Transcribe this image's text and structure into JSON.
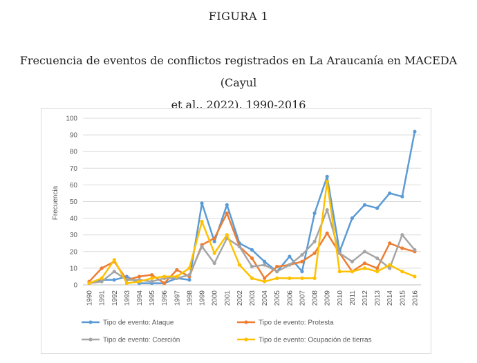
{
  "figure_label": "FIGURA 1",
  "caption_line1": "Frecuencia de eventos de conflictos registrados en La Araucanía en MACEDA (Cayul",
  "caption_line2": "et al., 2022), 1990-2016",
  "chart_data": {
    "type": "line",
    "title": "",
    "xlabel": "",
    "ylabel": "Frecuencia",
    "ylim": [
      0,
      100
    ],
    "y_ticks": [
      0,
      10,
      20,
      30,
      40,
      50,
      60,
      70,
      80,
      90,
      100
    ],
    "grid": true,
    "legend_position": "bottom",
    "categories": [
      "1990",
      "1991",
      "1992",
      "1993",
      "1994",
      "1995",
      "1996",
      "1997",
      "1998",
      "1999",
      "2000",
      "2001",
      "2002",
      "2003",
      "2004",
      "2005",
      "2006",
      "2007",
      "2008",
      "2009",
      "2010",
      "2011",
      "2012",
      "2013",
      "2014",
      "2015",
      "2016"
    ],
    "series": [
      {
        "name": "Tipo de evento: Ataque",
        "color": "#5b9bd5",
        "values": [
          1,
          3,
          3,
          5,
          1,
          1,
          1,
          4,
          3,
          49,
          26,
          48,
          25,
          21,
          14,
          8,
          17,
          8,
          43,
          65,
          20,
          40,
          48,
          46,
          55,
          53,
          92
        ]
      },
      {
        "name": "Tipo de evento: Protesta",
        "color": "#ed7d31",
        "values": [
          2,
          10,
          14,
          3,
          5,
          6,
          1,
          9,
          5,
          24,
          28,
          43,
          23,
          16,
          4,
          11,
          12,
          14,
          19,
          31,
          19,
          8,
          13,
          10,
          25,
          22,
          20
        ]
      },
      {
        "name": "Tipo de evento: Coerción",
        "color": "#a5a5a5",
        "values": [
          1,
          2,
          8,
          3,
          3,
          2,
          4,
          4,
          6,
          23,
          13,
          28,
          23,
          11,
          12,
          8,
          12,
          18,
          26,
          45,
          19,
          14,
          20,
          16,
          10,
          30,
          21
        ]
      },
      {
        "name": "Tipo de evento: Ocupación de tierras",
        "color": "#ffc000",
        "values": [
          1,
          4,
          15,
          1,
          2,
          4,
          5,
          5,
          10,
          38,
          19,
          30,
          12,
          4,
          2,
          4,
          4,
          4,
          4,
          62,
          8,
          8,
          10,
          8,
          12,
          8,
          5
        ]
      }
    ]
  }
}
